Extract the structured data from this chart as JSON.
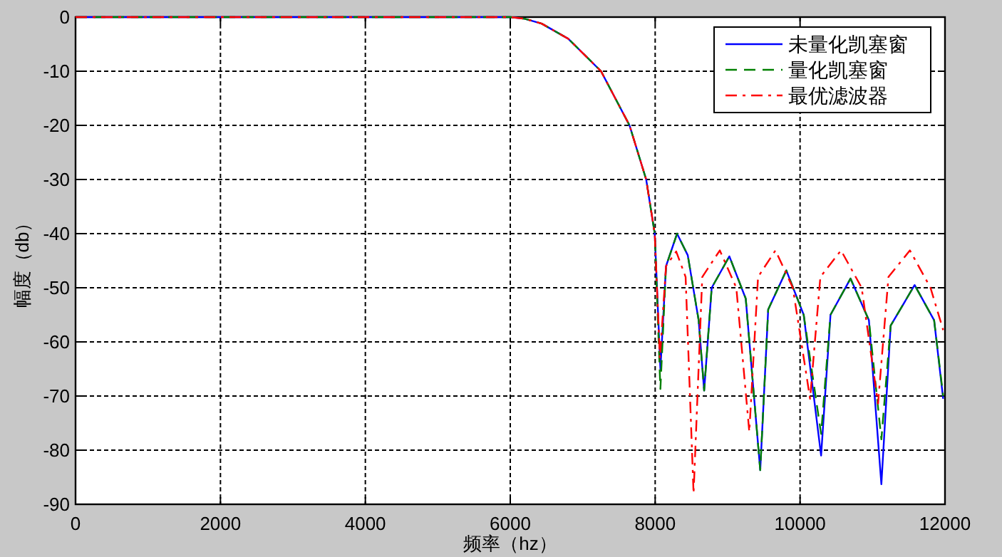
{
  "chart_data": {
    "type": "line",
    "xlabel": "频率（hz）",
    "ylabel": "幅度（db）",
    "xlim": [
      0,
      12000
    ],
    "ylim": [
      -90,
      0
    ],
    "xticks": [
      0,
      2000,
      4000,
      6000,
      8000,
      10000,
      12000
    ],
    "yticks": [
      -90,
      -80,
      -70,
      -60,
      -50,
      -40,
      -30,
      -20,
      -10,
      0
    ],
    "grid": true,
    "legend": "top right",
    "series": [
      {
        "name": "未量化凯塞窗",
        "color": "#0000ff",
        "line_style": "solid",
        "x": [
          0,
          6000,
          6200,
          6433,
          6800,
          7253,
          7646,
          7876,
          7994,
          8072,
          8150,
          8302,
          8450,
          8600,
          8676,
          8780,
          9024,
          9250,
          9450,
          9560,
          9810,
          10050,
          10290,
          10420,
          10696,
          10950,
          11122,
          11250,
          11581,
          11850,
          11975
        ],
        "values": [
          0,
          0,
          -0.3,
          -1.2,
          -4,
          -10,
          -20,
          -30,
          -40,
          -65,
          -46,
          -40,
          -44,
          -56,
          -69,
          -50,
          -44.2,
          -52,
          -83.7,
          -54,
          -46.8,
          -55,
          -81,
          -55,
          -48.3,
          -56,
          -86.3,
          -57,
          -49.5,
          -56,
          -70.5
        ]
      },
      {
        "name": "量化凯塞窗",
        "color": "#008000",
        "line_style": "dashed",
        "x": [
          0,
          6000,
          6200,
          6433,
          6800,
          7253,
          7646,
          7876,
          7994,
          8072,
          8150,
          8302,
          8450,
          8600,
          8676,
          8780,
          9024,
          9250,
          9450,
          9560,
          9810,
          10050,
          10290,
          10420,
          10696,
          10950,
          11122,
          11250,
          11581,
          11850,
          11975
        ],
        "values": [
          0,
          0,
          -0.3,
          -1.2,
          -4,
          -10,
          -20,
          -30,
          -40,
          -68.7,
          -46,
          -40,
          -44,
          -56,
          -69,
          -50,
          -44.2,
          -52,
          -83.7,
          -54,
          -46.8,
          -55,
          -77,
          -55,
          -48.3,
          -56,
          -78,
          -57,
          -49.5,
          -56,
          -70
        ]
      },
      {
        "name": "最优滤波器",
        "color": "#ff0000",
        "line_style": "dashdot",
        "x": [
          0,
          6000,
          6200,
          6433,
          6800,
          7253,
          7646,
          7876,
          7994,
          8065,
          8150,
          8290,
          8420,
          8530,
          8650,
          8892,
          9120,
          9299,
          9420,
          9660,
          9900,
          10138,
          10280,
          10565,
          10850,
          11076,
          11220,
          11516,
          11800,
          11975
        ],
        "values": [
          0,
          0,
          -0.3,
          -1.2,
          -4,
          -10,
          -20,
          -30,
          -40,
          -63,
          -46,
          -43.3,
          -48,
          -88,
          -48,
          -43.1,
          -50,
          -76.6,
          -48,
          -43.1,
          -50,
          -70.5,
          -48,
          -43.1,
          -50,
          -71.4,
          -48,
          -43.1,
          -50,
          -57.8
        ]
      }
    ]
  }
}
